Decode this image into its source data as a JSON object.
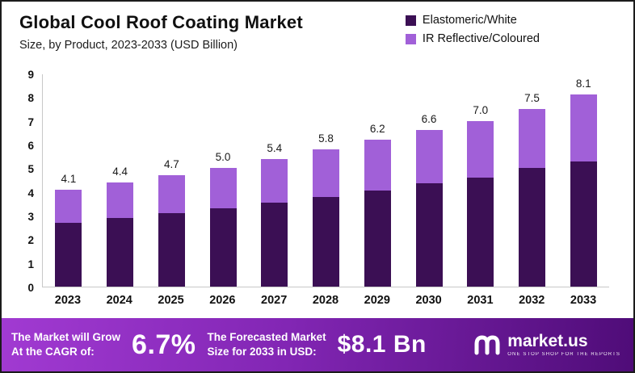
{
  "header": {
    "title": "Global Cool Roof Coating Market",
    "subtitle": "Size, by Product, 2023-2033 (USD Billion)"
  },
  "legend": [
    {
      "label": "Elastomeric/White",
      "color": "#3b0f54"
    },
    {
      "label": "IR Reflective/Coloured",
      "color": "#a160d8"
    }
  ],
  "chart_data": {
    "type": "bar",
    "stacked": true,
    "title": "Global Cool Roof Coating Market",
    "subtitle": "Size, by Product, 2023-2033 (USD Billion)",
    "categories": [
      "2023",
      "2024",
      "2025",
      "2026",
      "2027",
      "2028",
      "2029",
      "2030",
      "2031",
      "2032",
      "2033"
    ],
    "series": [
      {
        "name": "Elastomeric/White",
        "color": "#3b0f54",
        "values": [
          2.7,
          2.9,
          3.1,
          3.3,
          3.55,
          3.8,
          4.05,
          4.35,
          4.6,
          5.0,
          5.3
        ]
      },
      {
        "name": "IR Reflective/Coloured",
        "color": "#a160d8",
        "values": [
          1.4,
          1.5,
          1.6,
          1.7,
          1.85,
          2.0,
          2.15,
          2.25,
          2.4,
          2.5,
          2.8
        ]
      }
    ],
    "totals": [
      "4.1",
      "4.4",
      "4.7",
      "5.0",
      "5.4",
      "5.8",
      "6.2",
      "6.6",
      "7.0",
      "7.5",
      "8.1"
    ],
    "xlabel": "",
    "ylabel": "",
    "ylim": [
      0,
      9
    ],
    "ytick_step": 1,
    "grid": false,
    "legend_position": "top-right"
  },
  "footer": {
    "cagr_label_line1": "The Market will Grow",
    "cagr_label_line2": "At the CAGR of:",
    "cagr_value": "6.7%",
    "forecast_label_line1": "The Forecasted Market",
    "forecast_label_line2": "Size for 2033 in USD:",
    "forecast_value": "$8.1 Bn",
    "brand": "market.us",
    "brand_tagline": "One Stop Shop For The Reports"
  }
}
